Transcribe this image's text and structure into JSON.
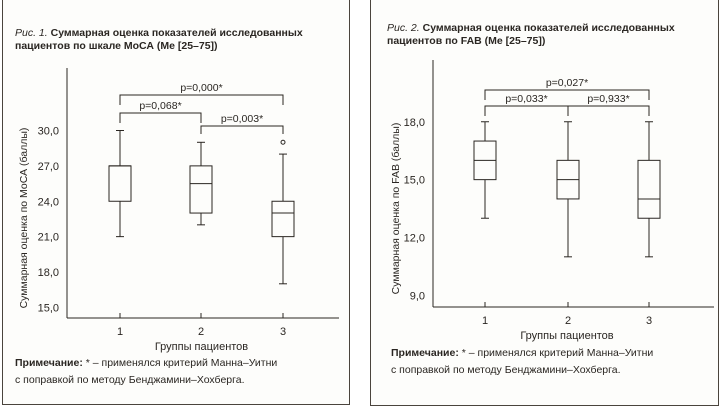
{
  "chart_data": [
    {
      "type": "box",
      "fig_label": "Рис. 1.",
      "title": "Суммарная оценка показателей исследованных пациентов по шкале МоСА (Me [25–75])",
      "title_line1": "Суммарная оценка показателей исследованных",
      "title_line2": "пациентов по шкале МоСА (Me [25–75])",
      "xlabel": "Группы пациентов",
      "ylabel": "Суммарная оценка по МоСА (баллы)",
      "categories": [
        "1",
        "2",
        "3"
      ],
      "yticks": [
        "15,0",
        "18,0",
        "21,0",
        "24,0",
        "27,0",
        "30,0"
      ],
      "ylim": [
        14.1,
        35.3
      ],
      "boxes": [
        {
          "group": "1",
          "min": 21,
          "q1": 24,
          "median": 27,
          "q3": 27,
          "max": 30,
          "outliers": []
        },
        {
          "group": "2",
          "min": 22,
          "q1": 23,
          "median": 25.5,
          "q3": 27,
          "max": 29,
          "outliers": []
        },
        {
          "group": "3",
          "min": 17,
          "q1": 21,
          "median": 23,
          "q3": 24,
          "max": 28,
          "outliers": [
            29
          ]
        }
      ],
      "comparisons": [
        {
          "from": "1",
          "to": "3",
          "label": "p=0,000*"
        },
        {
          "from": "1",
          "to": "2",
          "label": "p=0,068*"
        },
        {
          "from": "2",
          "to": "3",
          "label": "p=0,003*"
        }
      ],
      "note_bold": "Примечание:",
      "note_line1": " * – применялся критерий Манна–Уитни",
      "note_line2": "с поправкой по методу Бенджамини–Хохберга."
    },
    {
      "type": "box",
      "fig_label": "Рис. 2.",
      "title": "Суммарная оценка показателей исследованных пациентов по FAB (Me [25–75])",
      "title_line1": "Суммарная оценка показателей исследованных",
      "title_line2": "пациентов по FAB (Me [25–75])",
      "xlabel": "Группы пациентов",
      "ylabel": "Суммарная оценка по FAB (баллы)",
      "categories": [
        "1",
        "2",
        "3"
      ],
      "yticks": [
        "9,0",
        "12,0",
        "15,0",
        "18,0"
      ],
      "ylim": [
        8.4,
        21.2
      ],
      "boxes": [
        {
          "group": "1",
          "min": 13,
          "q1": 15,
          "median": 16,
          "q3": 17,
          "max": 18,
          "outliers": []
        },
        {
          "group": "2",
          "min": 11,
          "q1": 14,
          "median": 15,
          "q3": 16,
          "max": 18,
          "outliers": []
        },
        {
          "group": "3",
          "min": 11,
          "q1": 13,
          "median": 14,
          "q3": 16,
          "max": 18,
          "outliers": []
        }
      ],
      "comparisons": [
        {
          "from": "1",
          "to": "3",
          "label": "p=0,027*"
        },
        {
          "from": "1",
          "to": "2",
          "label": "p=0,033*"
        },
        {
          "from": "2",
          "to": "3",
          "label": "p=0,933*"
        }
      ],
      "note_bold": "Примечание:",
      "note_line1": " * – применялся критерий Манна–Уитни",
      "note_line2": "с поправкой по методу Бенджамини–Хохберга."
    }
  ],
  "colors": {
    "ink": "#2a2622",
    "frame": "#4a443d",
    "background": "#fdfdfb"
  }
}
